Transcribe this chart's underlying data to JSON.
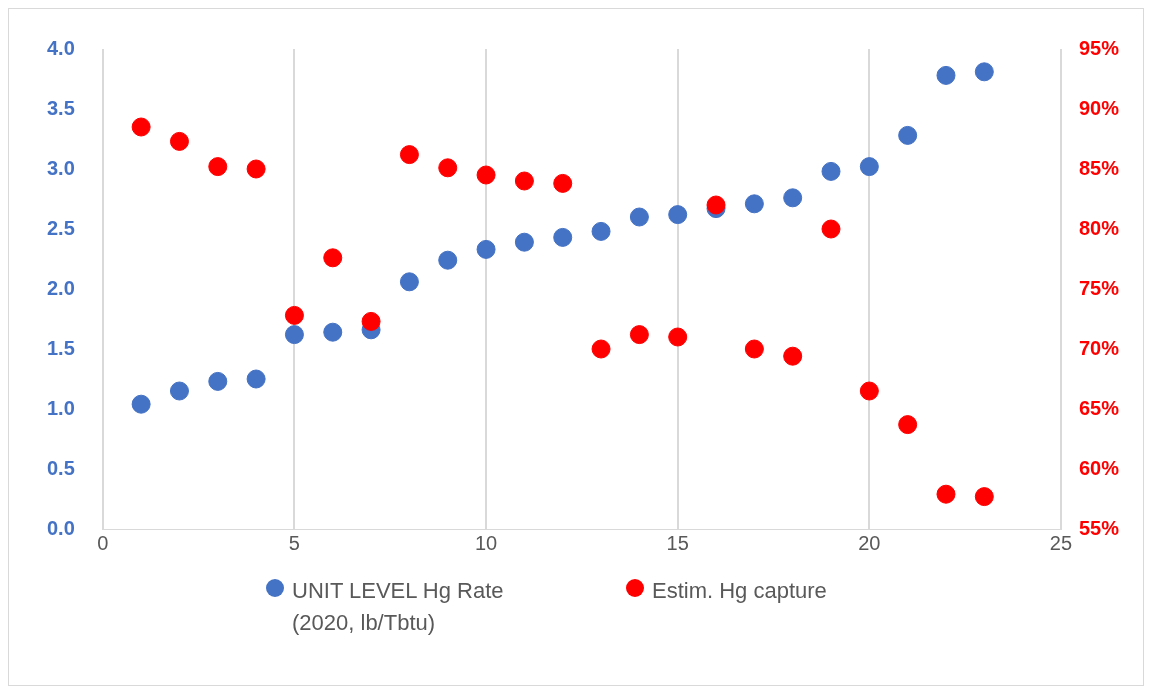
{
  "chart_data": {
    "type": "scatter",
    "x": [
      1,
      2,
      3,
      4,
      5,
      6,
      7,
      8,
      9,
      10,
      11,
      12,
      13,
      14,
      15,
      16,
      17,
      18,
      19,
      20,
      21,
      22,
      23
    ],
    "xlim": [
      0,
      25
    ],
    "xticks": [
      0,
      5,
      10,
      15,
      20,
      25
    ],
    "ylim": [
      0,
      4
    ],
    "yticks": [
      {
        "value": 0,
        "label": "0.0"
      },
      0.5,
      {
        "value": 1,
        "label": "1.0"
      },
      1.5,
      {
        "value": 2,
        "label": "2.0"
      },
      2.5,
      {
        "value": 3,
        "label": "3.0"
      },
      3.5,
      {
        "value": 4,
        "label": "4.0"
      }
    ],
    "y2lim": [
      55,
      95
    ],
    "y2ticks": [
      {
        "value": 55,
        "label": "55%"
      },
      {
        "value": 60,
        "label": "60%"
      },
      {
        "value": 65,
        "label": "65%"
      },
      {
        "value": 70,
        "label": "70%"
      },
      {
        "value": 75,
        "label": "75%"
      },
      {
        "value": 80,
        "label": "80%"
      },
      {
        "value": 85,
        "label": "85%"
      },
      {
        "value": 90,
        "label": "90%"
      },
      {
        "value": 95,
        "label": "95%"
      }
    ],
    "grid": "x",
    "legend": "bottom",
    "marker": "circle",
    "series": [
      {
        "name": "UNIT LEVEL Hg Rate (2020, lb/Tbtu)",
        "color": "#4472c4",
        "values": [
          1.04,
          1.15,
          1.23,
          1.25,
          1.62,
          1.64,
          1.66,
          2.06,
          2.24,
          2.33,
          2.39,
          2.43,
          2.48,
          2.6,
          2.62,
          2.67,
          2.71,
          2.76,
          2.98,
          3.02,
          3.28,
          3.78,
          3.81
        ]
      },
      {
        "name": "Estim. Hg capture",
        "color": "#ff0000",
        "axis": "y2",
        "values": [
          88.5,
          87.3,
          85.2,
          85.0,
          72.8,
          77.6,
          72.3,
          86.2,
          85.1,
          84.5,
          84.0,
          83.8,
          70.0,
          71.2,
          71.0,
          82.0,
          70.0,
          69.4,
          80.0,
          66.5,
          63.7,
          57.9,
          57.7
        ]
      }
    ]
  }
}
